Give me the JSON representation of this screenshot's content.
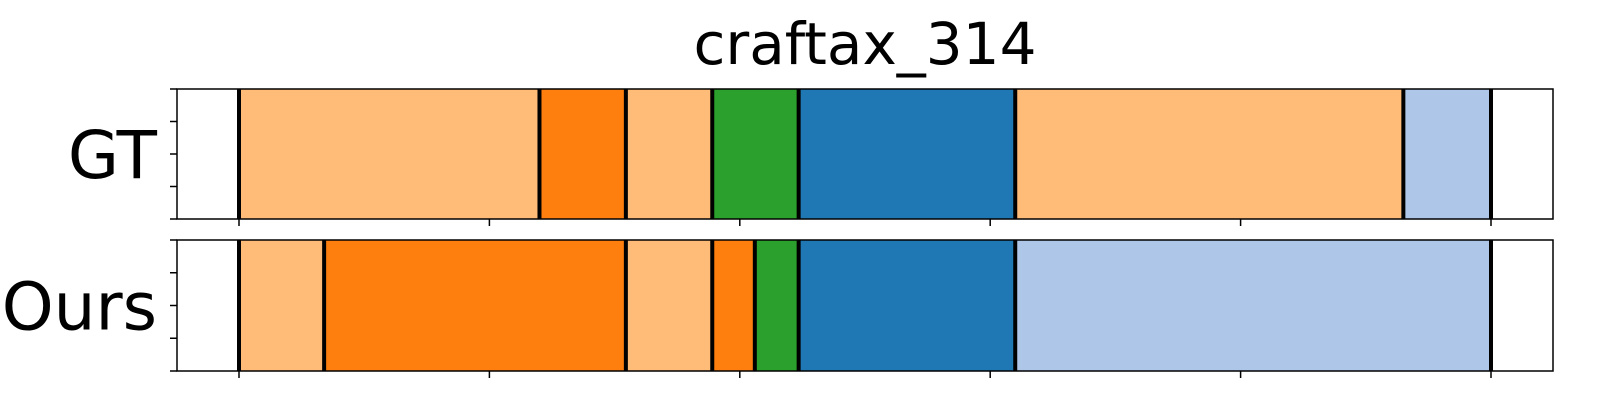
{
  "chart_data": {
    "type": "segmentation",
    "title": "craftax_314",
    "xlim": [
      0,
      1
    ],
    "colors": {
      "light_orange": "#ffbb78",
      "orange": "#ff7f0e",
      "green": "#2ca02c",
      "blue": "#1f77b4",
      "light_blue": "#aec7e8"
    },
    "rows": [
      {
        "label": "GT",
        "segments": [
          {
            "start": 0.0,
            "end": 0.24,
            "color": "light_orange"
          },
          {
            "start": 0.24,
            "end": 0.309,
            "color": "orange"
          },
          {
            "start": 0.309,
            "end": 0.378,
            "color": "light_orange"
          },
          {
            "start": 0.378,
            "end": 0.447,
            "color": "green"
          },
          {
            "start": 0.447,
            "end": 0.62,
            "color": "blue"
          },
          {
            "start": 0.62,
            "end": 0.93,
            "color": "light_orange"
          },
          {
            "start": 0.93,
            "end": 1.0,
            "color": "light_blue"
          }
        ]
      },
      {
        "label": "Ours",
        "segments": [
          {
            "start": 0.0,
            "end": 0.068,
            "color": "light_orange"
          },
          {
            "start": 0.068,
            "end": 0.309,
            "color": "orange"
          },
          {
            "start": 0.309,
            "end": 0.378,
            "color": "light_orange"
          },
          {
            "start": 0.378,
            "end": 0.412,
            "color": "orange"
          },
          {
            "start": 0.412,
            "end": 0.447,
            "color": "green"
          },
          {
            "start": 0.447,
            "end": 0.62,
            "color": "blue"
          },
          {
            "start": 0.62,
            "end": 1.0,
            "color": "light_blue"
          }
        ]
      }
    ]
  }
}
